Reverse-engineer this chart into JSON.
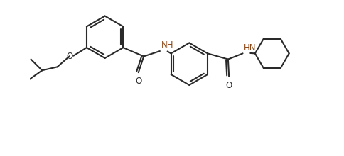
{
  "bg_color": "#ffffff",
  "line_color": "#2a2a2a",
  "nh_color": "#8B4513",
  "lw": 1.5,
  "figsize": [
    4.85,
    2.2
  ],
  "dpi": 100,
  "xlim": [
    0,
    9.7
  ],
  "ylim": [
    -1.5,
    3.8
  ]
}
